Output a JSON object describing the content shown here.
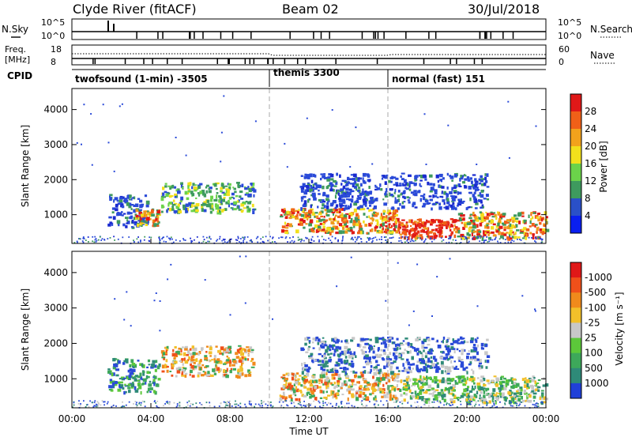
{
  "header": {
    "station": "Clyde River (fitACF)",
    "beam": "Beam 02",
    "date": "30/Jul/2018"
  },
  "summary_panels": {
    "nsky_label": "N.Sky",
    "nsearch_label": "N.Search",
    "nsky_ticks": [
      "10^5",
      "10^0"
    ],
    "nsearch_ticks": [
      "10^5",
      "10^0"
    ],
    "freq_label_top": "Freq.",
    "freq_label_unit": "[MHz]",
    "freq_ticks": [
      "18",
      "8"
    ],
    "nave_label": "Nave",
    "nave_ticks": [
      "60",
      "0"
    ],
    "cpid_label": "CPID"
  },
  "cpid_segments": [
    {
      "label": "twofsound (1-min) -3505",
      "start_hour": 0
    },
    {
      "label": "themis 3300",
      "start_hour": 10
    },
    {
      "label": "normal (fast) 151",
      "start_hour": 16
    }
  ],
  "chart_data": [
    {
      "type": "heatmap",
      "title": "Power",
      "xlabel": "Time UT",
      "ylabel": "Slant Range [km]",
      "xlim": [
        0,
        24
      ],
      "ylim": [
        180,
        4600
      ],
      "x_ticks": [
        "00:00",
        "04:00",
        "08:00",
        "12:00",
        "16:00",
        "20:00",
        "00:00"
      ],
      "y_ticks": [
        1000,
        2000,
        3000,
        4000
      ],
      "colorbar": {
        "label": "Power [dB]",
        "ticks": [
          "4",
          "8",
          "12",
          "16",
          "20",
          "24",
          "28"
        ],
        "colors": [
          "#0a1ff0",
          "#2a50c8",
          "#3e9a5e",
          "#6bd34a",
          "#f2e01c",
          "#f2a21c",
          "#f06018",
          "#e01818"
        ]
      },
      "mode_boundaries_hours": [
        10,
        16
      ],
      "scatter_regions": [
        {
          "t0": 1.8,
          "t1": 3.8,
          "r0": 650,
          "r1": 1600,
          "dominant": "blue"
        },
        {
          "t0": 3.2,
          "t1": 4.4,
          "r0": 700,
          "r1": 1200,
          "dominant": "orange"
        },
        {
          "t0": 4.5,
          "t1": 9.2,
          "r0": 1100,
          "r1": 1950,
          "dominant": "green"
        },
        {
          "t0": 10.5,
          "t1": 16.5,
          "r0": 500,
          "r1": 1200,
          "dominant": "orange"
        },
        {
          "t0": 16.5,
          "t1": 19.5,
          "r0": 380,
          "r1": 900,
          "dominant": "red"
        },
        {
          "t0": 11.5,
          "t1": 21.0,
          "r0": 1200,
          "r1": 2200,
          "dominant": "blue"
        },
        {
          "t0": 19.5,
          "t1": 24.0,
          "r0": 350,
          "r1": 1100,
          "dominant": "orange"
        }
      ]
    },
    {
      "type": "heatmap",
      "title": "Velocity",
      "xlabel": "Time UT",
      "ylabel": "Slant Range [km]",
      "xlim": [
        0,
        24
      ],
      "ylim": [
        180,
        4600
      ],
      "x_ticks": [
        "00:00",
        "04:00",
        "08:00",
        "12:00",
        "16:00",
        "20:00",
        "00:00"
      ],
      "y_ticks": [
        1000,
        2000,
        3000,
        4000
      ],
      "colorbar": {
        "label": "Velocity [m s⁻¹]",
        "ticks": [
          "1000",
          "500",
          "100",
          "25",
          "-25",
          "-100",
          "-500",
          "-1000"
        ],
        "colors": [
          "#2040d8",
          "#2e8a78",
          "#3da85a",
          "#5cc83a",
          "#c8c8c8",
          "#f2c02a",
          "#f08a1c",
          "#f0501a",
          "#e01818"
        ]
      },
      "mode_boundaries_hours": [
        10,
        16
      ],
      "scatter_regions": [
        {
          "t0": 1.8,
          "t1": 4.4,
          "r0": 650,
          "r1": 1600,
          "dominant": "teal"
        },
        {
          "t0": 4.5,
          "t1": 9.2,
          "r0": 1100,
          "r1": 1950,
          "dominant": "orange"
        },
        {
          "t0": 10.5,
          "t1": 16.5,
          "r0": 450,
          "r1": 1200,
          "dominant": "orange"
        },
        {
          "t0": 16.5,
          "t1": 20.0,
          "r0": 380,
          "r1": 1100,
          "dominant": "green"
        },
        {
          "t0": 11.5,
          "t1": 21.0,
          "r0": 1200,
          "r1": 2200,
          "dominant": "blue"
        },
        {
          "t0": 20.0,
          "t1": 24.0,
          "r0": 350,
          "r1": 1100,
          "dominant": "green"
        }
      ]
    }
  ]
}
